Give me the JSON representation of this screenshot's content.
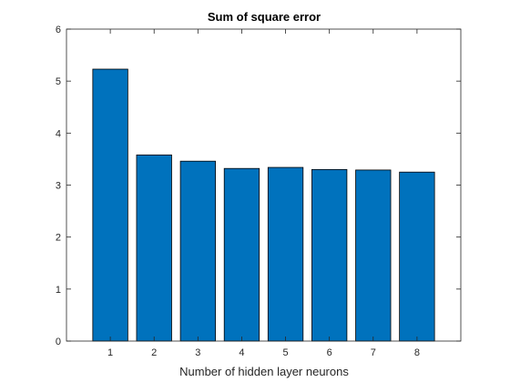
{
  "chart_data": {
    "type": "bar",
    "title": "Sum of square error",
    "xlabel": "Number of hidden layer neurons",
    "ylabel": "",
    "categories": [
      "1",
      "2",
      "3",
      "4",
      "5",
      "6",
      "7",
      "8"
    ],
    "values": [
      5.23,
      3.58,
      3.46,
      3.32,
      3.34,
      3.3,
      3.29,
      3.25
    ],
    "xlim": [
      0,
      9
    ],
    "ylim": [
      0,
      6
    ],
    "yticks": [
      "0",
      "1",
      "2",
      "3",
      "4",
      "5",
      "6"
    ],
    "grid": false,
    "bar_color": "#0072BD",
    "bar_edge_color": "#000000"
  }
}
